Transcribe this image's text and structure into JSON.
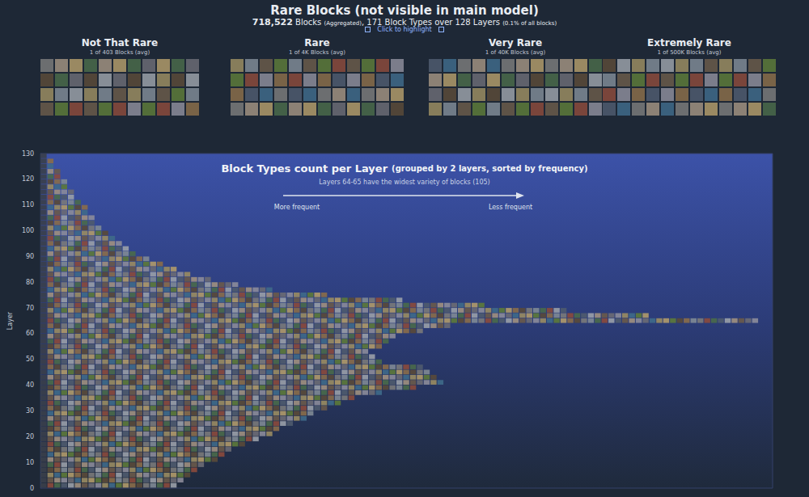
{
  "header": {
    "title": "Rare Blocks (not visible in main model)",
    "blocks": "718,522",
    "blocks_note": "Blocks",
    "aggregated": "(Aggregated)",
    "summary": ", 171 Block Types over 128 Layers",
    "share": "(0.1% of all blocks)",
    "link": "Click to highlight"
  },
  "rare_groups": [
    {
      "name": "Not That Rare",
      "note": "1 of 403 Blocks (avg)"
    },
    {
      "name": "Rare",
      "note": "1 of 4K Blocks (avg)"
    },
    {
      "name": "Very Rare",
      "note": "1 of 40K Blocks (avg)"
    },
    {
      "name": "Extremely Rare",
      "note": "1 of 500K Blocks (avg)"
    }
  ],
  "chart_data": {
    "type": "bar",
    "orientation": "horizontal",
    "title": "Block Types count per Layer",
    "title_note": "(grouped by 2 layers, sorted by frequency)",
    "subtitle": "Layers 64-65 have the widest variety of blocks (105)",
    "arrow_start": "More frequent",
    "arrow_end": "Less frequent",
    "ylabel": "Layer",
    "x": [
      0,
      2,
      4,
      6,
      8,
      10,
      12,
      14,
      16,
      18,
      20,
      22,
      24,
      26,
      28,
      30,
      32,
      34,
      36,
      38,
      40,
      42,
      44,
      46,
      48,
      50,
      52,
      54,
      56,
      58,
      60,
      62,
      64,
      66,
      68,
      70,
      72,
      74,
      76,
      78,
      80,
      82,
      84,
      86,
      88,
      90,
      92,
      94,
      96,
      98,
      100,
      102,
      104,
      106,
      108,
      110,
      112,
      114,
      116,
      118,
      120,
      122,
      124,
      126,
      128
    ],
    "values": [
      20,
      21,
      22,
      23,
      24,
      26,
      27,
      28,
      30,
      32,
      34,
      35,
      37,
      39,
      40,
      42,
      44,
      46,
      50,
      55,
      59,
      58,
      57,
      56,
      50,
      49,
      48,
      50,
      51,
      52,
      56,
      60,
      105,
      89,
      77,
      65,
      53,
      42,
      34,
      29,
      25,
      22,
      20,
      18,
      16,
      14,
      13,
      12,
      11,
      10,
      9,
      8,
      8,
      7,
      7,
      6,
      5,
      5,
      4,
      4,
      3,
      3,
      2,
      2,
      1
    ],
    "color": "#6f7080",
    "xlim": [
      0,
      107
    ],
    "ylim": [
      0,
      130
    ],
    "yticks": [
      0,
      10,
      20,
      30,
      40,
      50,
      60,
      70,
      80,
      90,
      100,
      110,
      120,
      130
    ],
    "tick_labels": "y",
    "grid": false
  }
}
